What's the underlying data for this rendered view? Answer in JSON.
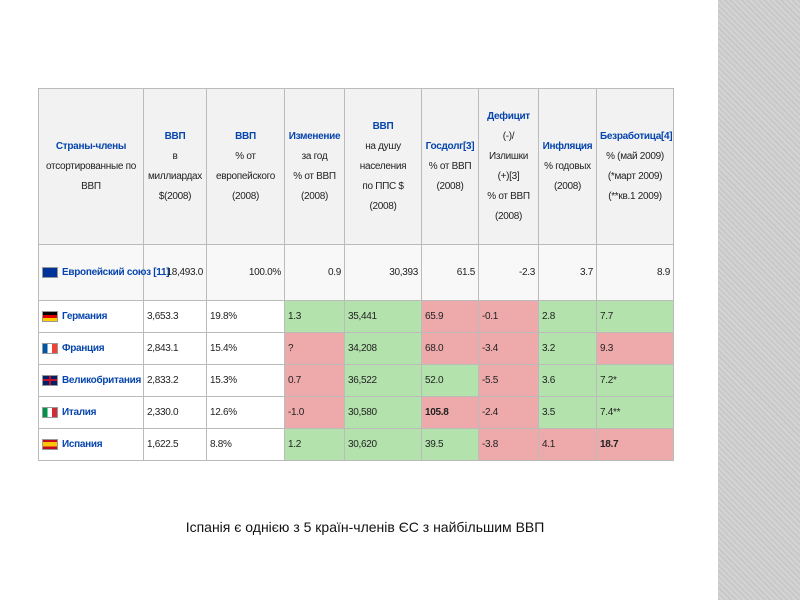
{
  "table": {
    "header": [
      [
        "Страны-члены",
        "отсортированные по",
        "ВВП"
      ],
      [
        "ВВП",
        "в",
        "миллиардах",
        "$(2008)"
      ],
      [
        "ВВП",
        "% от",
        "европейского",
        "(2008)"
      ],
      [
        "Изменение",
        "за год",
        "% от ВВП",
        "(2008)"
      ],
      [
        "ВВП",
        "на душу",
        "населения",
        "по ППС $",
        "(2008)"
      ],
      [
        "Госдолг[3]",
        "% от ВВП",
        "(2008)"
      ],
      [
        "Дефицит",
        "(-)/",
        "Излишки",
        "(+)[3]",
        "% от ВВП",
        "(2008)"
      ],
      [
        "Инфляция",
        "% годовых",
        "(2008)"
      ],
      [
        "Безработица[4]",
        "% (май 2009)",
        "(*март 2009)",
        "(**кв.1 2009)"
      ]
    ],
    "summary": {
      "country": "Европейский союз [11]",
      "cells": [
        "18,493.0",
        "100.0%",
        "0.9",
        "30,393",
        "61.5",
        "-2.3",
        "3.7",
        "8.9"
      ]
    },
    "rows": [
      {
        "country": "Германия",
        "cells": [
          "3,653.3",
          "19.8%",
          "1.3",
          "35,441",
          "65.9",
          "-0.1",
          "2.8",
          "7.7"
        ],
        "colors": [
          null,
          null,
          "#b3e2ad",
          "#b3e2ad",
          "#eeaaaa",
          "#eeaaaa",
          "#b3e2ad",
          "#b3e2ad"
        ],
        "bold": []
      },
      {
        "country": "Франция",
        "cells": [
          "2,843.1",
          "15.4%",
          "?",
          "34,208",
          "68.0",
          "-3.4",
          "3.2",
          "9.3"
        ],
        "colors": [
          null,
          null,
          "#eeaaaa",
          "#b3e2ad",
          "#eeaaaa",
          "#eeaaaa",
          "#b3e2ad",
          "#eeaaaa"
        ],
        "bold": []
      },
      {
        "country": "Великобритания",
        "cells": [
          "2,833.2",
          "15.3%",
          "0.7",
          "36,522",
          "52.0",
          "-5.5",
          "3.6",
          "7.2*"
        ],
        "colors": [
          null,
          null,
          "#eeaaaa",
          "#b3e2ad",
          "#b3e2ad",
          "#eeaaaa",
          "#b3e2ad",
          "#b3e2ad"
        ],
        "bold": []
      },
      {
        "country": "Италия",
        "cells": [
          "2,330.0",
          "12.6%",
          "-1.0",
          "30,580",
          "105.8",
          "-2.4",
          "3.5",
          "7.4**"
        ],
        "colors": [
          null,
          null,
          "#eeaaaa",
          "#b3e2ad",
          "#eeaaaa",
          "#eeaaaa",
          "#b3e2ad",
          "#b3e2ad"
        ],
        "bold": [
          4
        ]
      },
      {
        "country": "Испания",
        "cells": [
          "1,622.5",
          "8.8%",
          "1.2",
          "30,620",
          "39.5",
          "-3.8",
          "4.1",
          "18.7"
        ],
        "colors": [
          null,
          null,
          "#b3e2ad",
          "#b3e2ad",
          "#b3e2ad",
          "#eeaaaa",
          "#eeaaaa",
          "#eeaaaa"
        ],
        "bold": [
          7
        ]
      }
    ]
  },
  "caption": "Іспанія є однією з 5 країн-членів ЄС з найбільшим ВВП"
}
